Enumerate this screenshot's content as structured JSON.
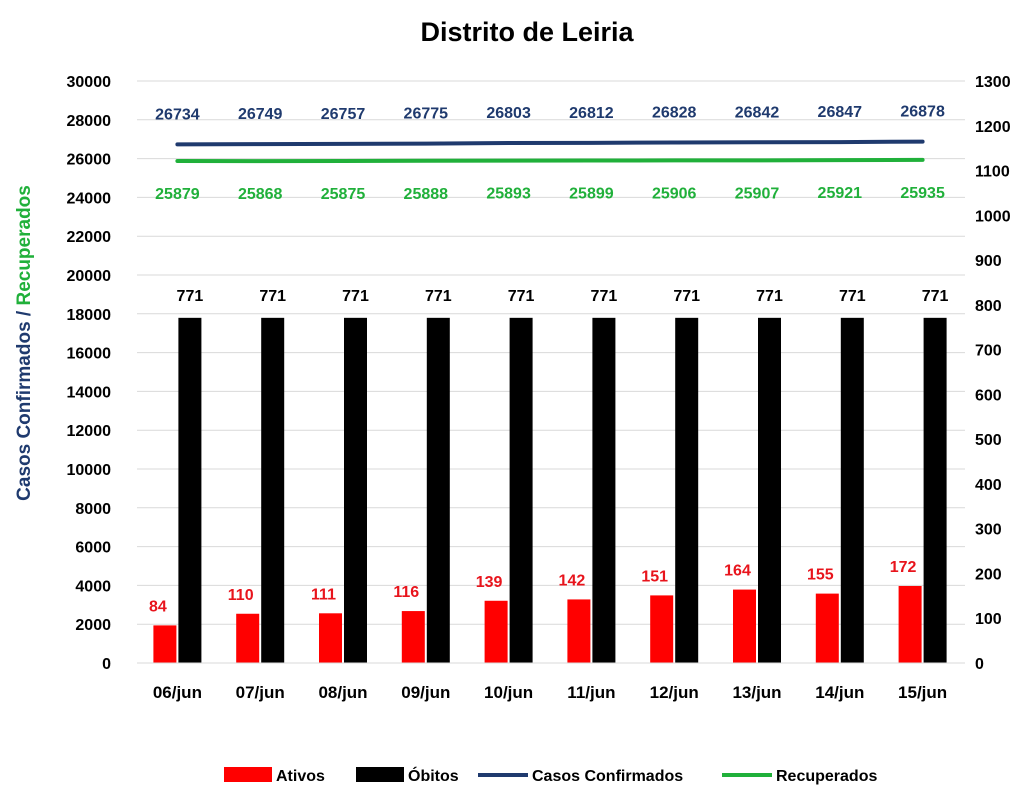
{
  "chart_data": {
    "type": "bar",
    "title": "Distrito de Leiria",
    "ylabel_parts": [
      "Casos Confirmados",
      " / ",
      "Recuperados"
    ],
    "categories": [
      "06/jun",
      "07/jun",
      "08/jun",
      "09/jun",
      "10/jun",
      "11/jun",
      "12/jun",
      "13/jun",
      "14/jun",
      "15/jun"
    ],
    "ylim_left": [
      0,
      30000
    ],
    "ylim_right": [
      0,
      1300
    ],
    "left_ticks": [
      "0",
      "2000",
      "4000",
      "6000",
      "8000",
      "10000",
      "12000",
      "14000",
      "16000",
      "18000",
      "20000",
      "22000",
      "24000",
      "26000",
      "28000",
      "30000"
    ],
    "right_ticks": [
      "0",
      "100",
      "200",
      "300",
      "400",
      "500",
      "600",
      "700",
      "800",
      "900",
      "1000",
      "1100",
      "1200",
      "1300"
    ],
    "grid": true,
    "legend_position": "bottom",
    "series": [
      {
        "name": "Ativos",
        "type": "bar",
        "axis": "right",
        "color": "#ff0000",
        "label_color": "#e8141c",
        "values": [
          84,
          110,
          111,
          116,
          139,
          142,
          151,
          164,
          155,
          172
        ]
      },
      {
        "name": "Óbitos",
        "type": "bar",
        "axis": "right",
        "color": "#000000",
        "label_color": "#000000",
        "values": [
          771,
          771,
          771,
          771,
          771,
          771,
          771,
          771,
          771,
          771
        ]
      },
      {
        "name": "Casos Confirmados",
        "type": "line",
        "axis": "left",
        "color": "#1f3a6e",
        "label_color": "#1f3a6e",
        "values": [
          26734,
          26749,
          26757,
          26775,
          26803,
          26812,
          26828,
          26842,
          26847,
          26878
        ]
      },
      {
        "name": "Recuperados",
        "type": "line",
        "axis": "left",
        "color": "#20b03a",
        "label_color": "#20b03a",
        "values": [
          25879,
          25868,
          25875,
          25888,
          25893,
          25899,
          25906,
          25907,
          25921,
          25935
        ]
      }
    ],
    "colors": {
      "ylabel_primary": "#1f3a6e",
      "ylabel_secondary": "#20b03a"
    }
  }
}
